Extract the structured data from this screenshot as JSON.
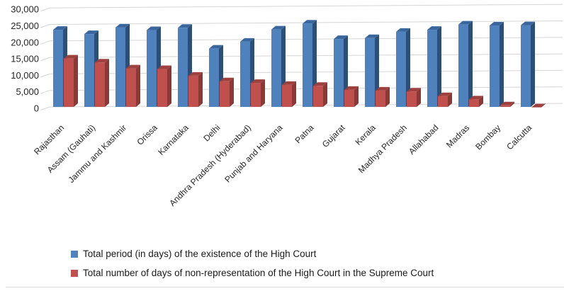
{
  "chart_data": {
    "type": "bar",
    "style": "3d-clustered-column",
    "title": "",
    "categories": [
      "Rajasthan",
      "Assam (Gauhati)",
      "Jammu and Kashmir",
      "Orissa",
      "Karnataka",
      "Delhi",
      "Andhra Pradesh (Hyderabad)",
      "Punjab and Haryana",
      "Patna",
      "Gujarat",
      "Kerala",
      "Madhya Pradesh",
      "Allahabad",
      "Madras",
      "Bombay",
      "Calcutta"
    ],
    "series": [
      {
        "name": "Total period (in days) of the existence of the High Court",
        "color": "#4F81BD",
        "side_color": "#2E4E74",
        "top_color": "#3A669E",
        "values": [
          23800,
          22500,
          24500,
          23700,
          24400,
          18100,
          20200,
          23900,
          25700,
          21000,
          21300,
          23200,
          23800,
          25400,
          25100,
          25200
        ]
      },
      {
        "name": "Total number of days of non-representation of the High Court in the Supreme Court",
        "color": "#C0504D",
        "side_color": "#8C3836",
        "top_color": "#9E403E",
        "values": [
          15100,
          13900,
          12100,
          11900,
          9900,
          8200,
          7700,
          7100,
          6800,
          5600,
          5400,
          5100,
          3700,
          2700,
          900,
          300
        ]
      }
    ],
    "ylim": [
      0,
      30000
    ],
    "ytick_interval": 5000,
    "ytick_labels": [
      "0",
      "5,000",
      "10,000",
      "15,000",
      "20,000",
      "25,000",
      "30,000"
    ],
    "grid": true,
    "gridline_color": "#D5D5D5",
    "axis_text_color": "#262626",
    "legend_position": "bottom-left"
  }
}
